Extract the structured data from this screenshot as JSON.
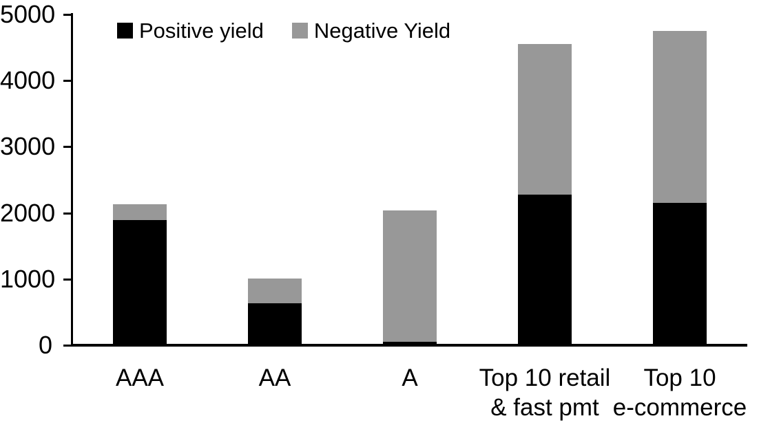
{
  "chart_data": {
    "type": "bar",
    "stacked": true,
    "title": "",
    "xlabel": "",
    "ylabel": "",
    "categories": [
      "AAA",
      "AA",
      "A",
      "Top 10 retail\n& fast pmt",
      "Top 10\ne-commerce"
    ],
    "series": [
      {
        "name": "Positive yield",
        "color": "#000000",
        "values": [
          1890,
          630,
          50,
          2280,
          2150
        ]
      },
      {
        "name": "Negative Yield",
        "color": "#989898",
        "values": [
          240,
          380,
          1990,
          2270,
          2600
        ]
      }
    ],
    "stack_totals": [
      2130,
      1010,
      2040,
      4550,
      4750
    ],
    "ylim": [
      0,
      5000
    ],
    "yticks": [
      0,
      1000,
      2000,
      3000,
      4000,
      5000
    ],
    "grid": false,
    "legend_position": "top",
    "background_color": "#ffffff",
    "axis_color": "#000000"
  }
}
